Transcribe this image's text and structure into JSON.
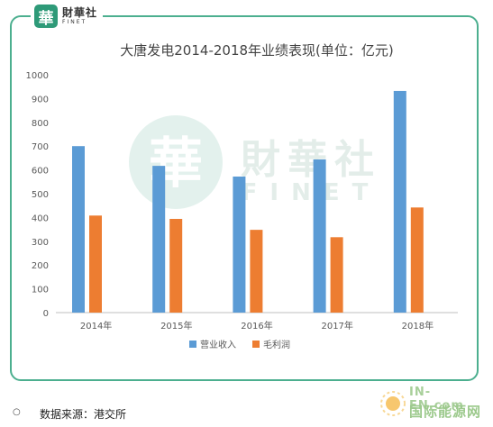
{
  "logo": {
    "mark": "華",
    "name": "財華社",
    "sub": "FINET"
  },
  "watermark": {
    "mark": "華",
    "name": "財華社",
    "sub": "FINET"
  },
  "chart_data": {
    "type": "bar",
    "title": "大唐发电2014-2018年业绩表现(单位：亿元)",
    "categories": [
      "2014年",
      "2015年",
      "2016年",
      "2017年",
      "2018年"
    ],
    "series": [
      {
        "name": "营业收入",
        "values": [
          700,
          617,
          572,
          644,
          932
        ],
        "color": "#5b9bd5"
      },
      {
        "name": "毛利润",
        "values": [
          408,
          394,
          348,
          317,
          442
        ],
        "color": "#ed7d31"
      }
    ],
    "ylim": [
      0,
      1000
    ],
    "yticks": [
      0,
      100,
      200,
      300,
      400,
      500,
      600,
      700,
      800,
      900,
      1000
    ],
    "grid": false,
    "legend": "bottom-center"
  },
  "source": {
    "bullet": "○",
    "text": "数据来源：港交所"
  },
  "brand": {
    "en": "IN-EN.com",
    "cn": "国际能源网"
  }
}
